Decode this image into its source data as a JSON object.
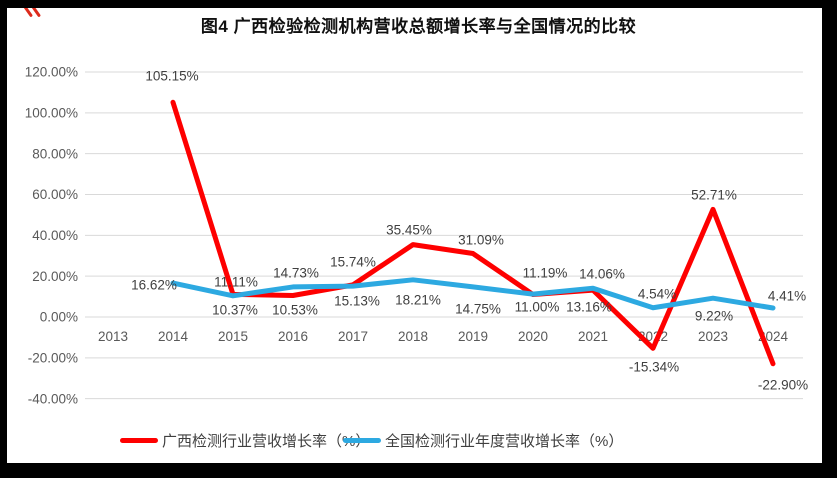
{
  "title": "图4 广西检验检测机构营收总额增长率与全国情况的比较",
  "colors": {
    "guangxi_line": "#FE0000",
    "national_line": "#2DA9E1",
    "gridline": "#D9D9D9",
    "axis_text": "#595959",
    "data_label_text": "#404040",
    "border": "#000000",
    "background": "#FFFFFF"
  },
  "chart_data": {
    "type": "line",
    "title": "图4 广西检验检测机构营收总额增长率与全国情况的比较",
    "categories": [
      "2013",
      "2014",
      "2015",
      "2016",
      "2017",
      "2018",
      "2019",
      "2020",
      "2021",
      "2022",
      "2023",
      "2024"
    ],
    "series": [
      {
        "name": "广西检测行业营收增长率（%）",
        "color": "#FE0000",
        "values": [
          null,
          105.15,
          11.11,
          10.53,
          15.74,
          35.45,
          31.09,
          11.0,
          13.16,
          -15.34,
          52.71,
          -22.9
        ]
      },
      {
        "name": "全国检测行业年度营收增长率（%）",
        "color": "#2DA9E1",
        "values": [
          null,
          16.62,
          10.37,
          14.73,
          15.13,
          18.21,
          14.75,
          11.19,
          14.06,
          4.54,
          9.22,
          4.41
        ]
      }
    ],
    "y_ticks": [
      120,
      100,
      80,
      60,
      40,
      20,
      0,
      -20,
      -40
    ],
    "y_tick_labels": [
      "120.00%",
      "100.00%",
      "80.00%",
      "60.00%",
      "40.00%",
      "20.00%",
      "0.00%",
      "-20.00%",
      "-40.00%"
    ],
    "ylim": [
      -40,
      120
    ],
    "value_suffix": "%",
    "grid": true,
    "data_labels": true,
    "legend_position": "bottom"
  },
  "legend": {
    "items": [
      {
        "label": "广西检测行业营收增长率（%）",
        "color": "#FE0000"
      },
      {
        "label": "全国检测行业年度营收增长率（%）",
        "color": "#2DA9E1"
      }
    ]
  }
}
